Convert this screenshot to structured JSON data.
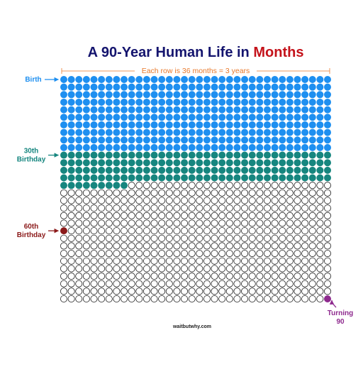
{
  "chart_data": {
    "type": "waffle",
    "title": {
      "text": "A 90-Year Human Life in ",
      "highlight": "Months"
    },
    "title_color": "#14146e",
    "highlight_color": "#c4121a",
    "row_note": "Each row is 36 months = 3 years",
    "row_note_color": "#e8782a",
    "total_months": 1080,
    "months_per_row": 36,
    "segments": [
      {
        "color": "#1e8ff0",
        "months": 360
      },
      {
        "color": "#16867f",
        "months": 153
      }
    ],
    "milestones": [
      {
        "label": [
          "Birth"
        ],
        "month": 0,
        "color": "#1e8ff0"
      },
      {
        "label": [
          "30th",
          "Birthday"
        ],
        "month": 360,
        "color": "#16867f"
      },
      {
        "label": [
          "60th",
          "Birthday"
        ],
        "month": 720,
        "color": "#8b1a1a"
      },
      {
        "label": [
          "Turning",
          "90"
        ],
        "month": 1079,
        "color": "#8e2a8e"
      }
    ],
    "footer": "waitbutwhy.com"
  }
}
